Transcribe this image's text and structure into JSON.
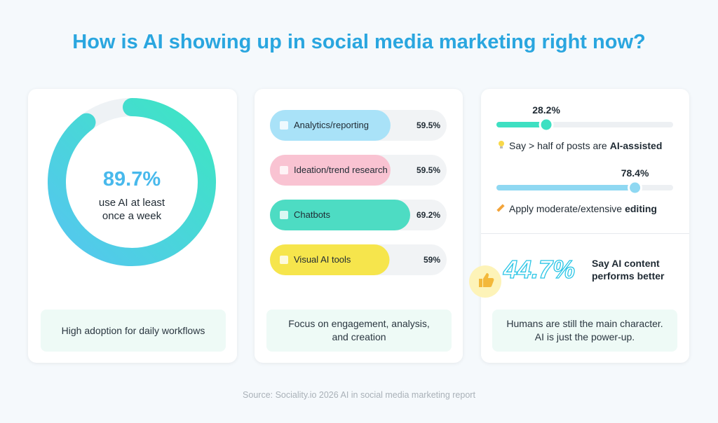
{
  "title": "How is AI showing up in social media marketing right now?",
  "adoption": {
    "value": 89.7,
    "value_label": "89.7%",
    "caption": "use AI at least once a week",
    "colors": [
      "#3de6c2",
      "#55c6f0"
    ],
    "track_color": "#eef2f5",
    "footer": "High adoption for daily workflows"
  },
  "use_cases": {
    "items": [
      {
        "label": "Analytics/reporting",
        "value": 59.5,
        "value_label": "59.5%",
        "color": "#a9e2f8"
      },
      {
        "label": "Ideation/trend research",
        "value": 59.5,
        "value_label": "59.5%",
        "color": "#f9c3d2"
      },
      {
        "label": "Chatbots",
        "value": 69.2,
        "value_label": "69.2%",
        "color": "#4ddcc3"
      },
      {
        "label": "Visual AI tools",
        "value": 59,
        "value_label": "59%",
        "color": "#f6e54c"
      }
    ],
    "footer": "Focus on engagement, analysis, and creation"
  },
  "editing": {
    "items": [
      {
        "value": 28.2,
        "value_label": "28.2%",
        "text": "Say > half of posts are",
        "emphasis": "AI-assisted",
        "color": "#3ee0c2"
      },
      {
        "value": 78.4,
        "value_label": "78.4%",
        "text": "Apply moderate/extensive",
        "emphasis": "editing",
        "color": "#8fd8f2"
      }
    ],
    "performance": {
      "value_label": "44.7%",
      "caption": "Say AI content performs better"
    },
    "footer": [
      "Humans are still the main character.",
      "AI is just the power-up."
    ]
  },
  "source": "Source: Sociality.io 2026 AI in social media marketing report"
}
